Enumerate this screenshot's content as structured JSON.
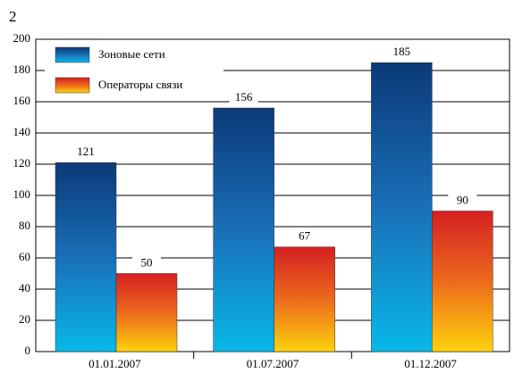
{
  "chart_data": {
    "type": "bar",
    "title": "2",
    "categories": [
      "01.01.2007",
      "01.07.2007",
      "01.12.2007"
    ],
    "series": [
      {
        "name": "Зоновые сети",
        "color": "#1a6fb8",
        "values": [
          121,
          156,
          185
        ]
      },
      {
        "name": "Операторы связи",
        "color": "#ec6a1c",
        "values": [
          50,
          67,
          90
        ]
      }
    ],
    "ylim": [
      0,
      200
    ],
    "yticks": [
      0,
      20,
      40,
      60,
      80,
      100,
      120,
      140,
      160,
      180,
      200
    ],
    "grid": true,
    "legend": "top-left"
  }
}
